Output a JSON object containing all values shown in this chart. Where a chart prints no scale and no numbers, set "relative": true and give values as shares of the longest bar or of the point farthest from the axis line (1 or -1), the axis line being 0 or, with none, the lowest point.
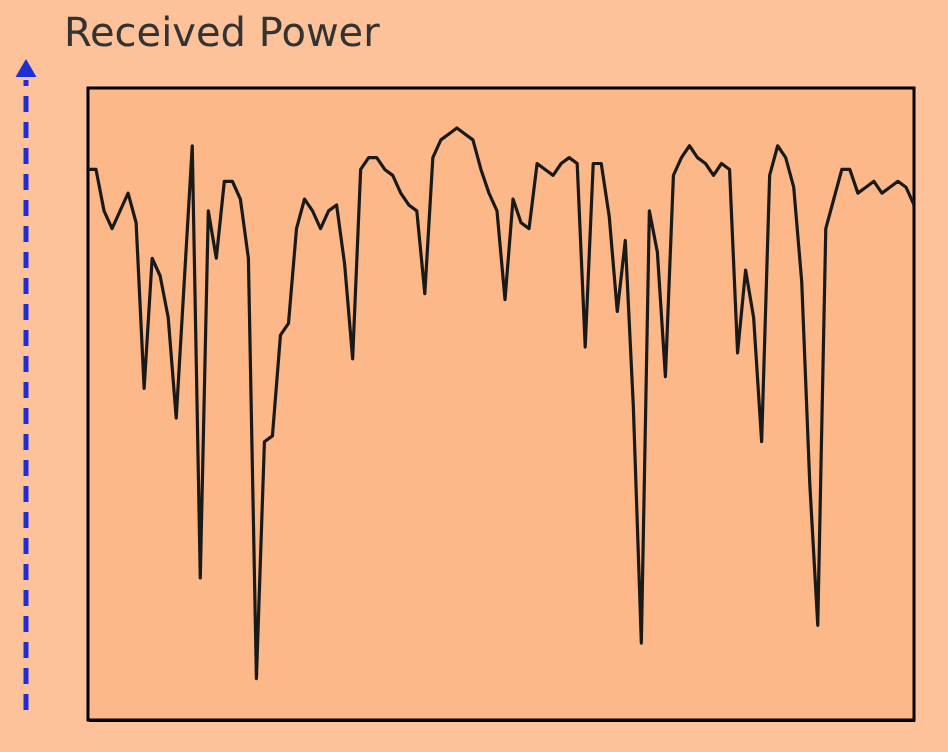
{
  "chart_data": {
    "type": "line",
    "relative": true,
    "ylabel": "Received Power",
    "categories": [
      null,
      null,
      null,
      null,
      null,
      null,
      null,
      null,
      null,
      null,
      null,
      null,
      null,
      null,
      null,
      null,
      null,
      null,
      null,
      null,
      null,
      null,
      null,
      null,
      null,
      null,
      null,
      null,
      null,
      null,
      null,
      null,
      null,
      null,
      null,
      null,
      null,
      null,
      null,
      null,
      null,
      null,
      null,
      null,
      null,
      null,
      null,
      null,
      null,
      null,
      null,
      null,
      null,
      null,
      null,
      null,
      null,
      null,
      null,
      null,
      null,
      null,
      null,
      null,
      null,
      null,
      null,
      null,
      null,
      null,
      null,
      null,
      null,
      null,
      null,
      null,
      null,
      null,
      null,
      null,
      null,
      null,
      null,
      null,
      null,
      null,
      null,
      null,
      null,
      null,
      null,
      null,
      null,
      null,
      null,
      null,
      null,
      null,
      null,
      null,
      null,
      null,
      null,
      null
    ],
    "series": [
      {
        "color": "#1a1a1a",
        "values": [
          0.93,
          0.93,
          0.86,
          0.83,
          0.86,
          0.89,
          0.84,
          0.56,
          0.78,
          0.75,
          0.68,
          0.51,
          0.74,
          0.97,
          0.24,
          0.86,
          0.78,
          0.91,
          0.91,
          0.88,
          0.78,
          0.07,
          0.47,
          0.48,
          0.65,
          0.67,
          0.83,
          0.88,
          0.86,
          0.83,
          0.86,
          0.87,
          0.77,
          0.61,
          0.93,
          0.95,
          0.95,
          0.93,
          0.92,
          0.89,
          0.87,
          0.86,
          0.72,
          0.95,
          0.98,
          0.99,
          1,
          0.99,
          0.98,
          0.93,
          0.89,
          0.86,
          0.71,
          0.88,
          0.84,
          0.83,
          0.94,
          0.93,
          0.92,
          0.94,
          0.95,
          0.94,
          0.63,
          0.94,
          0.94,
          0.85,
          0.69,
          0.81,
          0.53,
          0.13,
          0.86,
          0.79,
          0.58,
          0.92,
          0.95,
          0.97,
          0.95,
          0.94,
          0.92,
          0.94,
          0.93,
          0.62,
          0.76,
          0.68,
          0.47,
          0.92,
          0.97,
          0.95,
          0.9,
          0.74,
          0.4,
          0.16,
          0.83,
          0.88,
          0.93,
          0.93,
          0.89,
          0.9,
          0.91,
          0.89,
          0.9,
          0.91,
          0.9,
          0.87
        ]
      }
    ],
    "line_style": "solid",
    "marker": "none",
    "grid": false,
    "tick_labels": false
  }
}
